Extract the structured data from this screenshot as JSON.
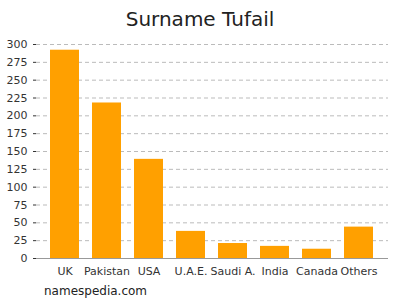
{
  "chart_data": {
    "type": "bar",
    "title": "Surname Tufail",
    "caption": "namespedia.com",
    "categories": [
      "UK",
      "Pakistan",
      "USA",
      "U.A.E.",
      "Saudi A.",
      "India",
      "Canada",
      "Others"
    ],
    "values": [
      292,
      218,
      139,
      38,
      21,
      17,
      13,
      44
    ],
    "color": "#ffa000",
    "ylim": [
      0,
      300
    ],
    "yticks": [
      0,
      25,
      50,
      75,
      100,
      125,
      150,
      175,
      200,
      225,
      250,
      275,
      300
    ],
    "grid": true
  }
}
